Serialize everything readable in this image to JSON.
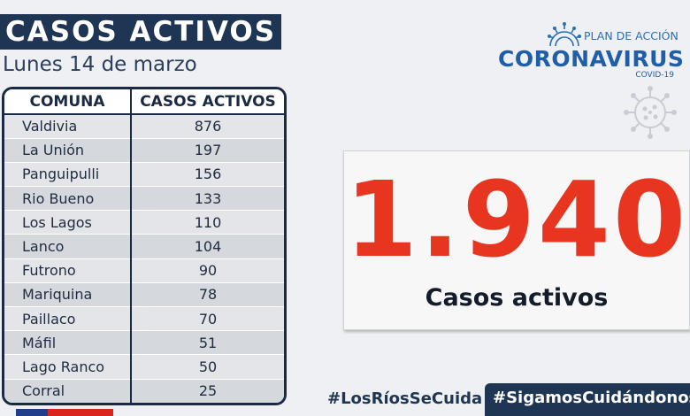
{
  "header": {
    "title": "CASOS ACTIVOS",
    "date": "Lunes 14 de marzo"
  },
  "table": {
    "columns": [
      "COMUNA",
      "CASOS ACTIVOS"
    ],
    "rows": [
      {
        "comuna": "Valdivia",
        "casos": "876"
      },
      {
        "comuna": "La Unión",
        "casos": "197"
      },
      {
        "comuna": "Panguipulli",
        "casos": "156"
      },
      {
        "comuna": "Rio Bueno",
        "casos": "133"
      },
      {
        "comuna": "Los Lagos",
        "casos": "110"
      },
      {
        "comuna": "Lanco",
        "casos": "104"
      },
      {
        "comuna": "Futrono",
        "casos": "90"
      },
      {
        "comuna": "Mariquina",
        "casos": "78"
      },
      {
        "comuna": "Paillaco",
        "casos": "70"
      },
      {
        "comuna": "Máfil",
        "casos": "51"
      },
      {
        "comuna": "Lago Ranco",
        "casos": "50"
      },
      {
        "comuna": "Corral",
        "casos": "25"
      }
    ]
  },
  "logo": {
    "plan": "PLAN DE ACCIÓN",
    "name": "CORONAVIRUS",
    "sub": "COVID-19",
    "icon": "virus-icon"
  },
  "total": {
    "value": "1.940",
    "label": "Casos activos"
  },
  "hashtags": {
    "primary": "#LosRíosSeCuida",
    "secondary": "#SigamosCuidándonos"
  },
  "colors": {
    "navy": "#1e3553",
    "accent_red": "#e8351f",
    "logo_blue": "#1f5ea8"
  }
}
